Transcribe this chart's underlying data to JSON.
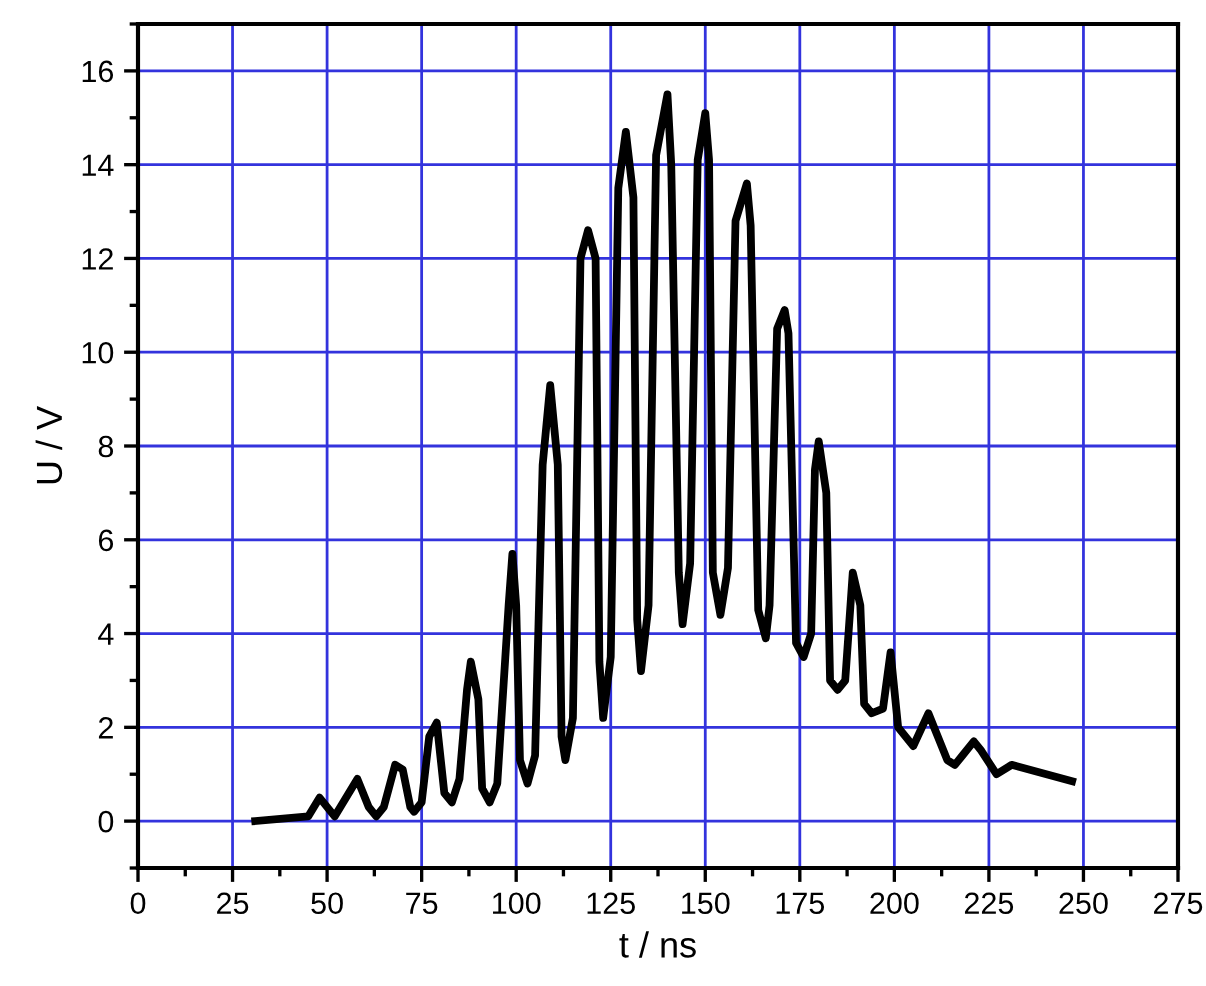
{
  "chart_data": {
    "type": "line",
    "xlabel": "t / ns",
    "ylabel": "U / V",
    "xlim": [
      0,
      275
    ],
    "ylim": [
      -1,
      17
    ],
    "xticks": [
      0,
      25,
      50,
      75,
      100,
      125,
      150,
      175,
      200,
      225,
      250,
      275
    ],
    "yticks": [
      0,
      2,
      4,
      6,
      8,
      10,
      12,
      14,
      16
    ],
    "grid": true,
    "marker": "none",
    "line_style": "solid",
    "series": [
      {
        "color": "#000000",
        "x": [
          31,
          45,
          48,
          52,
          58,
          61,
          63,
          65,
          68,
          70,
          72,
          73,
          75,
          77,
          79,
          81,
          83,
          85,
          87,
          88,
          90,
          91,
          93,
          95,
          98,
          99,
          100,
          101,
          103,
          105,
          107,
          109,
          111,
          112,
          113,
          115,
          117,
          119,
          121,
          122,
          123,
          125,
          127,
          129,
          131,
          132,
          133,
          135,
          137,
          140,
          141,
          143,
          144,
          146,
          148,
          150,
          151,
          152,
          154,
          156,
          158,
          161,
          162,
          164,
          166,
          167,
          169,
          171,
          172,
          174,
          176,
          178,
          179,
          180,
          182,
          183,
          185,
          187,
          189,
          191,
          192,
          194,
          197,
          199,
          201,
          205,
          209,
          214,
          216,
          218,
          221,
          223,
          227,
          231,
          247
        ],
        "values": [
          0,
          0.1,
          0.5,
          0.1,
          0.9,
          0.3,
          0.1,
          0.3,
          1.2,
          1.1,
          0.3,
          0.2,
          0.4,
          1.8,
          2.1,
          0.6,
          0.4,
          0.9,
          2.8,
          3.4,
          2.6,
          0.7,
          0.4,
          0.8,
          4.6,
          5.7,
          4.6,
          1.3,
          0.8,
          1.4,
          7.6,
          9.3,
          7.6,
          1.8,
          1.3,
          2.2,
          12.0,
          12.6,
          12.0,
          3.4,
          2.2,
          3.5,
          13.5,
          14.7,
          13.3,
          4.3,
          3.2,
          4.6,
          14.2,
          15.5,
          14.0,
          5.3,
          4.2,
          5.5,
          14.1,
          15.1,
          14.1,
          5.3,
          4.4,
          5.4,
          12.8,
          13.6,
          12.7,
          4.5,
          3.9,
          4.6,
          10.5,
          10.9,
          10.4,
          3.8,
          3.5,
          4.0,
          7.5,
          8.1,
          7.0,
          3.0,
          2.8,
          3.0,
          5.3,
          4.6,
          2.5,
          2.3,
          2.4,
          3.6,
          2.0,
          1.6,
          2.3,
          1.3,
          1.2,
          1.4,
          1.7,
          1.5,
          1.0,
          1.2,
          0.85
        ]
      }
    ]
  }
}
